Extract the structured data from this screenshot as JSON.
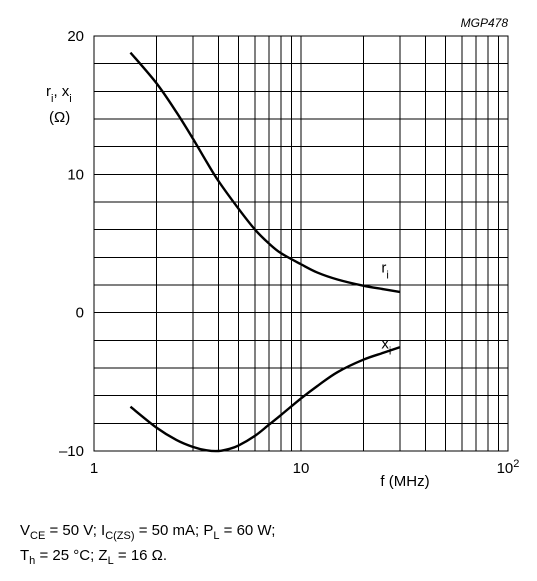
{
  "figure_id": "MGP478",
  "conditions": {
    "line1": [
      {
        "b": "V",
        "s": "CE",
        "t": " = 50 V; "
      },
      {
        "b": "I",
        "s": "C(ZS)",
        "t": " = 50 mA; "
      },
      {
        "b": "P",
        "s": "L",
        "t": " = 60 W;"
      }
    ],
    "line2": [
      {
        "b": "T",
        "s": "h",
        "t": " = 25 °C; "
      },
      {
        "b": "Z",
        "s": "L",
        "t": " = 16 Ω."
      }
    ]
  },
  "chart_data": {
    "type": "line",
    "x_scale": "log",
    "xlim": [
      1,
      100
    ],
    "ylim": [
      -10,
      20
    ],
    "xlabel": "f (MHz)",
    "ylabel": {
      "line1": {
        "parts": [
          {
            "b": "r",
            "s": "i",
            "t": ", "
          },
          {
            "b": "x",
            "s": "i",
            "t": ""
          }
        ]
      },
      "line2": "(Ω)"
    },
    "x_ticks": [
      {
        "value": 1,
        "label": "1",
        "sup": ""
      },
      {
        "value": 10,
        "label": "10",
        "sup": ""
      },
      {
        "value": 100,
        "label": "10",
        "sup": "2"
      }
    ],
    "y_ticks": [
      {
        "value": 20,
        "label": "20"
      },
      {
        "value": 10,
        "label": "10"
      },
      {
        "value": 0,
        "label": "0"
      },
      {
        "value": -10,
        "label": "–10"
      }
    ],
    "grid": true,
    "series": [
      {
        "name": "ri",
        "label": {
          "b": "r",
          "s": "i",
          "x": 20,
          "y": 2.9
        },
        "points": [
          [
            1.5,
            18.8
          ],
          [
            2,
            16.6
          ],
          [
            2.5,
            14.5
          ],
          [
            3,
            12.6
          ],
          [
            3.5,
            10.9
          ],
          [
            4,
            9.5
          ],
          [
            5,
            7.5
          ],
          [
            6,
            6.0
          ],
          [
            7,
            5.0
          ],
          [
            8,
            4.3
          ],
          [
            10,
            3.5
          ],
          [
            12,
            2.9
          ],
          [
            15,
            2.4
          ],
          [
            20,
            1.95
          ],
          [
            25,
            1.7
          ],
          [
            30,
            1.5
          ]
        ]
      },
      {
        "name": "xi",
        "label": {
          "b": "x",
          "s": "i",
          "x": 20,
          "y": -2.6
        },
        "points": [
          [
            1.5,
            -6.8
          ],
          [
            2,
            -8.3
          ],
          [
            2.5,
            -9.2
          ],
          [
            3,
            -9.7
          ],
          [
            3.5,
            -9.95
          ],
          [
            4,
            -10.0
          ],
          [
            4.5,
            -9.85
          ],
          [
            5,
            -9.6
          ],
          [
            6,
            -8.9
          ],
          [
            7,
            -8.1
          ],
          [
            8,
            -7.4
          ],
          [
            10,
            -6.2
          ],
          [
            12,
            -5.3
          ],
          [
            15,
            -4.3
          ],
          [
            20,
            -3.4
          ],
          [
            25,
            -2.9
          ],
          [
            30,
            -2.5
          ]
        ]
      }
    ]
  }
}
